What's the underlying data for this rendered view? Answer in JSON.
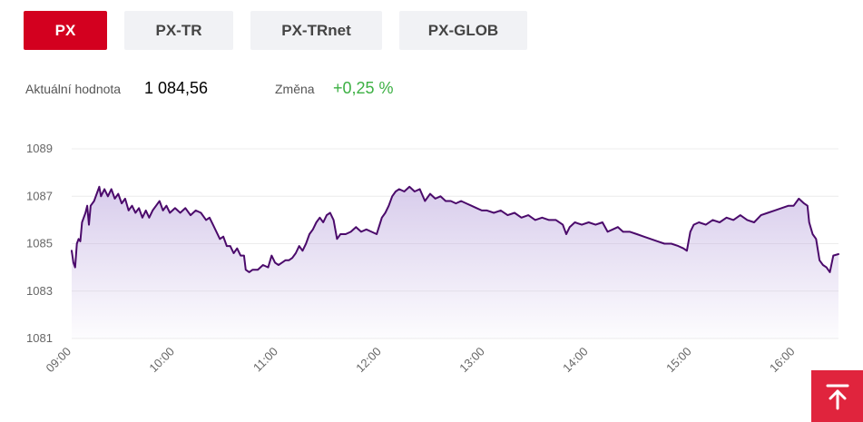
{
  "tabs": [
    {
      "label": "PX",
      "active": true
    },
    {
      "label": "PX-TR",
      "active": false
    },
    {
      "label": "PX-TRnet",
      "active": false
    },
    {
      "label": "PX-GLOB",
      "active": false
    }
  ],
  "stats": {
    "current_label": "Aktuální hodnota",
    "current_value": "1 084,56",
    "change_label": "Změna",
    "change_value": "+0,25 %"
  },
  "colors": {
    "accent": "#d3001f",
    "line": "#4b0a6b",
    "fill": "#b8a3dc",
    "positive": "#3cb043",
    "grid": "#ececec"
  },
  "scroll_top_icon": "arrow-up-to-line-icon",
  "chart_data": {
    "type": "area",
    "title": "",
    "xlabel": "",
    "ylabel": "",
    "ylim": [
      1081,
      1089
    ],
    "y_ticks": [
      1081,
      1083,
      1085,
      1087,
      1089
    ],
    "x_range": [
      "09:00",
      "16:25"
    ],
    "x_ticks": [
      "09:00",
      "10:00",
      "11:00",
      "12:00",
      "13:00",
      "14:00",
      "15:00",
      "16:00"
    ],
    "grid": true,
    "series": [
      {
        "points": [
          [
            "09:00",
            1084.7
          ],
          [
            "09:01",
            1084.2
          ],
          [
            "09:02",
            1084.0
          ],
          [
            "09:03",
            1085.0
          ],
          [
            "09:04",
            1085.2
          ],
          [
            "09:05",
            1085.1
          ],
          [
            "09:06",
            1085.9
          ],
          [
            "09:08",
            1086.3
          ],
          [
            "09:09",
            1086.6
          ],
          [
            "09:10",
            1085.8
          ],
          [
            "09:11",
            1086.6
          ],
          [
            "09:13",
            1086.8
          ],
          [
            "09:15",
            1087.2
          ],
          [
            "09:16",
            1087.4
          ],
          [
            "09:17",
            1087.0
          ],
          [
            "09:19",
            1087.3
          ],
          [
            "09:21",
            1087.0
          ],
          [
            "09:23",
            1087.3
          ],
          [
            "09:25",
            1086.9
          ],
          [
            "09:27",
            1087.1
          ],
          [
            "09:29",
            1086.7
          ],
          [
            "09:31",
            1086.9
          ],
          [
            "09:33",
            1086.4
          ],
          [
            "09:35",
            1086.6
          ],
          [
            "09:37",
            1086.3
          ],
          [
            "09:39",
            1086.5
          ],
          [
            "09:41",
            1086.1
          ],
          [
            "09:43",
            1086.4
          ],
          [
            "09:45",
            1086.1
          ],
          [
            "09:47",
            1086.4
          ],
          [
            "09:49",
            1086.6
          ],
          [
            "09:51",
            1086.8
          ],
          [
            "09:53",
            1086.4
          ],
          [
            "09:55",
            1086.6
          ],
          [
            "09:57",
            1086.3
          ],
          [
            "10:00",
            1086.5
          ],
          [
            "10:03",
            1086.3
          ],
          [
            "10:06",
            1086.5
          ],
          [
            "10:09",
            1086.2
          ],
          [
            "10:12",
            1086.4
          ],
          [
            "10:15",
            1086.3
          ],
          [
            "10:18",
            1086.0
          ],
          [
            "10:20",
            1086.1
          ],
          [
            "10:22",
            1085.8
          ],
          [
            "10:24",
            1085.5
          ],
          [
            "10:26",
            1085.2
          ],
          [
            "10:28",
            1085.3
          ],
          [
            "10:30",
            1084.9
          ],
          [
            "10:32",
            1084.9
          ],
          [
            "10:34",
            1084.6
          ],
          [
            "10:36",
            1084.8
          ],
          [
            "10:38",
            1084.5
          ],
          [
            "10:40",
            1084.5
          ],
          [
            "10:41",
            1083.9
          ],
          [
            "10:43",
            1083.8
          ],
          [
            "10:45",
            1083.9
          ],
          [
            "10:48",
            1083.9
          ],
          [
            "10:51",
            1084.1
          ],
          [
            "10:54",
            1084.0
          ],
          [
            "10:56",
            1084.5
          ],
          [
            "10:58",
            1084.2
          ],
          [
            "11:00",
            1084.1
          ],
          [
            "11:02",
            1084.2
          ],
          [
            "11:04",
            1084.3
          ],
          [
            "11:06",
            1084.3
          ],
          [
            "11:08",
            1084.4
          ],
          [
            "11:10",
            1084.6
          ],
          [
            "11:12",
            1084.9
          ],
          [
            "11:14",
            1084.7
          ],
          [
            "11:16",
            1085.0
          ],
          [
            "11:18",
            1085.4
          ],
          [
            "11:20",
            1085.6
          ],
          [
            "11:22",
            1085.9
          ],
          [
            "11:24",
            1086.1
          ],
          [
            "11:26",
            1085.9
          ],
          [
            "11:28",
            1086.2
          ],
          [
            "11:30",
            1086.3
          ],
          [
            "11:32",
            1086.0
          ],
          [
            "11:34",
            1085.2
          ],
          [
            "11:36",
            1085.4
          ],
          [
            "11:39",
            1085.4
          ],
          [
            "11:42",
            1085.5
          ],
          [
            "11:45",
            1085.7
          ],
          [
            "11:48",
            1085.5
          ],
          [
            "11:51",
            1085.6
          ],
          [
            "11:54",
            1085.5
          ],
          [
            "11:57",
            1085.4
          ],
          [
            "12:00",
            1086.1
          ],
          [
            "12:02",
            1086.3
          ],
          [
            "12:04",
            1086.6
          ],
          [
            "12:06",
            1087.0
          ],
          [
            "12:08",
            1087.2
          ],
          [
            "12:10",
            1087.3
          ],
          [
            "12:13",
            1087.2
          ],
          [
            "12:16",
            1087.4
          ],
          [
            "12:19",
            1087.2
          ],
          [
            "12:22",
            1087.3
          ],
          [
            "12:25",
            1086.8
          ],
          [
            "12:28",
            1087.1
          ],
          [
            "12:31",
            1086.9
          ],
          [
            "12:34",
            1087.0
          ],
          [
            "12:37",
            1086.8
          ],
          [
            "12:40",
            1086.8
          ],
          [
            "12:43",
            1086.7
          ],
          [
            "12:46",
            1086.8
          ],
          [
            "12:49",
            1086.7
          ],
          [
            "12:52",
            1086.6
          ],
          [
            "12:55",
            1086.5
          ],
          [
            "12:58",
            1086.4
          ],
          [
            "13:01",
            1086.4
          ],
          [
            "13:05",
            1086.3
          ],
          [
            "13:09",
            1086.4
          ],
          [
            "13:13",
            1086.2
          ],
          [
            "13:17",
            1086.3
          ],
          [
            "13:21",
            1086.1
          ],
          [
            "13:25",
            1086.2
          ],
          [
            "13:29",
            1086.0
          ],
          [
            "13:33",
            1086.1
          ],
          [
            "13:37",
            1086.0
          ],
          [
            "13:41",
            1086.0
          ],
          [
            "13:45",
            1085.8
          ],
          [
            "13:47",
            1085.4
          ],
          [
            "13:49",
            1085.7
          ],
          [
            "13:52",
            1085.9
          ],
          [
            "13:56",
            1085.8
          ],
          [
            "14:00",
            1085.9
          ],
          [
            "14:04",
            1085.8
          ],
          [
            "14:08",
            1085.9
          ],
          [
            "14:11",
            1085.5
          ],
          [
            "14:14",
            1085.6
          ],
          [
            "14:17",
            1085.7
          ],
          [
            "14:20",
            1085.5
          ],
          [
            "14:24",
            1085.5
          ],
          [
            "14:28",
            1085.4
          ],
          [
            "14:32",
            1085.3
          ],
          [
            "14:36",
            1085.2
          ],
          [
            "14:40",
            1085.1
          ],
          [
            "14:44",
            1085.0
          ],
          [
            "14:48",
            1085.0
          ],
          [
            "14:52",
            1084.9
          ],
          [
            "14:55",
            1084.8
          ],
          [
            "14:57",
            1084.7
          ],
          [
            "14:59",
            1085.5
          ],
          [
            "15:01",
            1085.8
          ],
          [
            "15:04",
            1085.9
          ],
          [
            "15:08",
            1085.8
          ],
          [
            "15:12",
            1086.0
          ],
          [
            "15:16",
            1085.9
          ],
          [
            "15:20",
            1086.1
          ],
          [
            "15:24",
            1086.0
          ],
          [
            "15:28",
            1086.2
          ],
          [
            "15:32",
            1086.0
          ],
          [
            "15:36",
            1085.9
          ],
          [
            "15:40",
            1086.2
          ],
          [
            "15:44",
            1086.3
          ],
          [
            "15:48",
            1086.4
          ],
          [
            "15:52",
            1086.5
          ],
          [
            "15:56",
            1086.6
          ],
          [
            "15:59",
            1086.6
          ],
          [
            "16:02",
            1086.9
          ],
          [
            "16:05",
            1086.7
          ],
          [
            "16:07",
            1086.6
          ],
          [
            "16:08",
            1085.9
          ],
          [
            "16:10",
            1085.4
          ],
          [
            "16:12",
            1085.2
          ],
          [
            "16:14",
            1084.3
          ],
          [
            "16:16",
            1084.1
          ],
          [
            "16:18",
            1084.0
          ],
          [
            "16:20",
            1083.8
          ],
          [
            "16:22",
            1084.5
          ],
          [
            "16:25",
            1084.56
          ]
        ]
      }
    ]
  }
}
